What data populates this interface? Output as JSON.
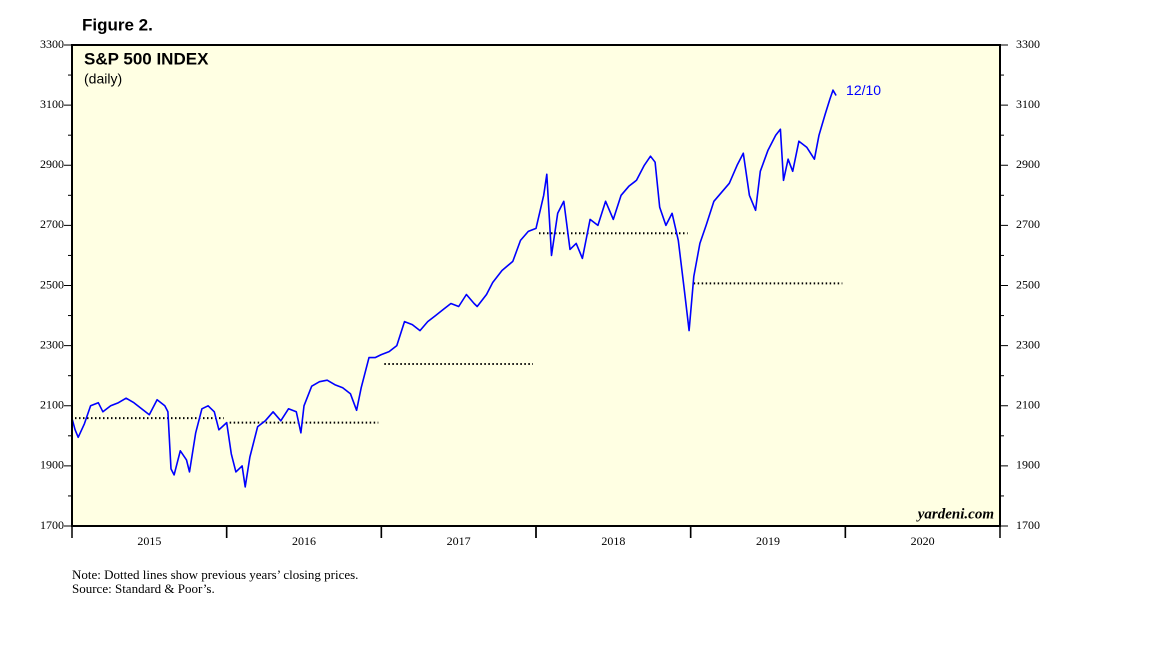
{
  "chart_data": {
    "type": "line",
    "figure_label": "Figure 2.",
    "title": "S&P 500 INDEX",
    "subtitle": "(daily)",
    "end_label": "12/10",
    "watermark": "yardeni.com",
    "notes": [
      "Note: Dotted lines show previous years’ closing prices.",
      "Source: Standard & Poor’s."
    ],
    "xlim": [
      2015,
      2021
    ],
    "xticks": [
      {
        "value": 2015.5,
        "label": "2015"
      },
      {
        "value": 2016.5,
        "label": "2016"
      },
      {
        "value": 2017.5,
        "label": "2017"
      },
      {
        "value": 2018.5,
        "label": "2018"
      },
      {
        "value": 2019.5,
        "label": "2019"
      },
      {
        "value": 2020.5,
        "label": "2020"
      }
    ],
    "ylim": [
      1700,
      3300
    ],
    "yticks": [
      1700,
      1900,
      2100,
      2300,
      2500,
      2700,
      2900,
      3100,
      3300
    ],
    "right_axis": true,
    "background": "#ffffe3",
    "series": [
      {
        "name": "S&P 500",
        "color": "#0000ff",
        "x": [
          2015.0,
          2015.02,
          2015.04,
          2015.08,
          2015.12,
          2015.17,
          2015.2,
          2015.25,
          2015.3,
          2015.35,
          2015.4,
          2015.45,
          2015.5,
          2015.55,
          2015.6,
          2015.62,
          2015.64,
          2015.66,
          2015.7,
          2015.74,
          2015.76,
          2015.8,
          2015.84,
          2015.88,
          2015.92,
          2015.95,
          2016.0,
          2016.03,
          2016.06,
          2016.1,
          2016.12,
          2016.15,
          2016.2,
          2016.25,
          2016.3,
          2016.35,
          2016.4,
          2016.45,
          2016.48,
          2016.5,
          2016.55,
          2016.6,
          2016.65,
          2016.7,
          2016.75,
          2016.8,
          2016.84,
          2016.87,
          2016.92,
          2016.96,
          2017.0,
          2017.05,
          2017.1,
          2017.15,
          2017.2,
          2017.25,
          2017.3,
          2017.35,
          2017.4,
          2017.45,
          2017.5,
          2017.55,
          2017.6,
          2017.62,
          2017.68,
          2017.72,
          2017.78,
          2017.85,
          2017.9,
          2017.95,
          2018.0,
          2018.05,
          2018.07,
          2018.1,
          2018.14,
          2018.18,
          2018.22,
          2018.26,
          2018.3,
          2018.35,
          2018.4,
          2018.45,
          2018.5,
          2018.55,
          2018.6,
          2018.65,
          2018.7,
          2018.74,
          2018.77,
          2018.8,
          2018.84,
          2018.88,
          2018.92,
          2018.96,
          2018.99,
          2019.02,
          2019.06,
          2019.1,
          2019.15,
          2019.2,
          2019.25,
          2019.3,
          2019.34,
          2019.38,
          2019.42,
          2019.45,
          2019.5,
          2019.55,
          2019.58,
          2019.6,
          2019.63,
          2019.66,
          2019.7,
          2019.75,
          2019.8,
          2019.83,
          2019.87,
          2019.9,
          2019.92,
          2019.94
        ],
        "values": [
          2058,
          2020,
          1995,
          2040,
          2100,
          2110,
          2080,
          2100,
          2110,
          2125,
          2110,
          2090,
          2070,
          2120,
          2100,
          2080,
          1890,
          1870,
          1950,
          1920,
          1880,
          2010,
          2090,
          2100,
          2080,
          2020,
          2044,
          1940,
          1880,
          1900,
          1830,
          1930,
          2030,
          2050,
          2080,
          2050,
          2090,
          2080,
          2010,
          2100,
          2165,
          2180,
          2185,
          2170,
          2160,
          2140,
          2085,
          2160,
          2260,
          2260,
          2270,
          2280,
          2300,
          2380,
          2370,
          2350,
          2380,
          2400,
          2420,
          2440,
          2430,
          2470,
          2440,
          2430,
          2470,
          2510,
          2550,
          2580,
          2650,
          2680,
          2690,
          2800,
          2870,
          2600,
          2740,
          2780,
          2620,
          2640,
          2590,
          2720,
          2700,
          2780,
          2720,
          2800,
          2830,
          2850,
          2900,
          2930,
          2910,
          2760,
          2700,
          2740,
          2650,
          2480,
          2350,
          2530,
          2640,
          2700,
          2780,
          2810,
          2840,
          2900,
          2940,
          2800,
          2750,
          2880,
          2950,
          3000,
          3020,
          2850,
          2920,
          2880,
          2980,
          2960,
          2920,
          3000,
          3070,
          3120,
          3150,
          3132
        ]
      }
    ],
    "reference_lines": [
      {
        "x": [
          2015,
          2016
        ],
        "value": 2058.9
      },
      {
        "x": [
          2016,
          2017
        ],
        "value": 2043.9
      },
      {
        "x": [
          2017,
          2018
        ],
        "value": 2238.8
      },
      {
        "x": [
          2018,
          2019
        ],
        "value": 2673.6
      },
      {
        "x": [
          2019,
          2020
        ],
        "value": 2506.9
      }
    ]
  }
}
